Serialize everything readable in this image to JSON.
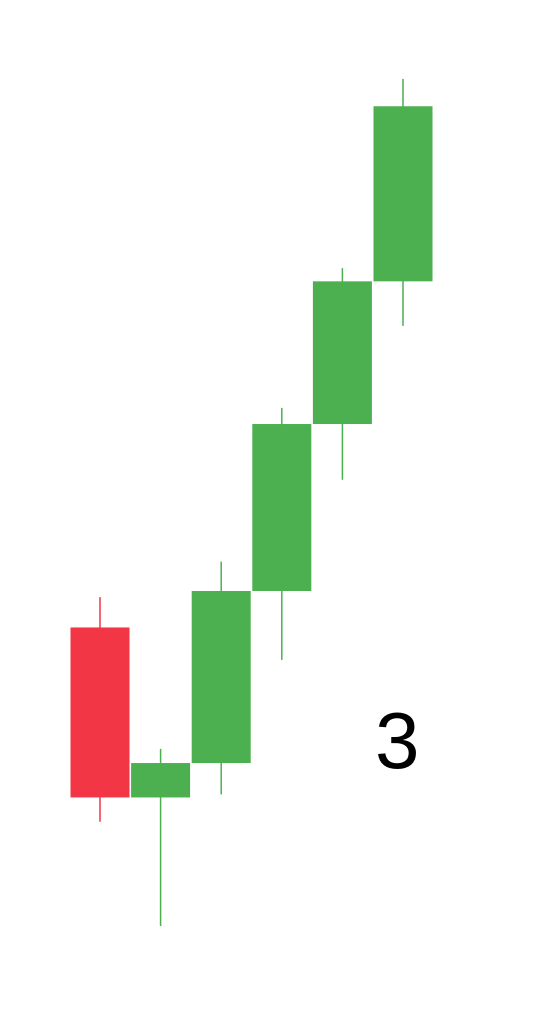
{
  "chart_data": {
    "type": "candlestick",
    "title": "",
    "xlabel": "",
    "ylabel": "",
    "ylim": [
      0,
      1000
    ],
    "colors": {
      "up": "#4caf50",
      "down": "#f23645"
    },
    "candles": [
      {
        "open": 380,
        "high": 410,
        "low": 188,
        "close": 212
      },
      {
        "open": 212,
        "high": 260,
        "low": 85,
        "close": 246
      },
      {
        "open": 246,
        "high": 445,
        "low": 215,
        "close": 416
      },
      {
        "open": 416,
        "high": 597,
        "low": 348,
        "close": 581
      },
      {
        "open": 581,
        "high": 735,
        "low": 526,
        "close": 722
      },
      {
        "open": 722,
        "high": 922,
        "low": 678,
        "close": 895
      }
    ],
    "annotation": "3"
  }
}
